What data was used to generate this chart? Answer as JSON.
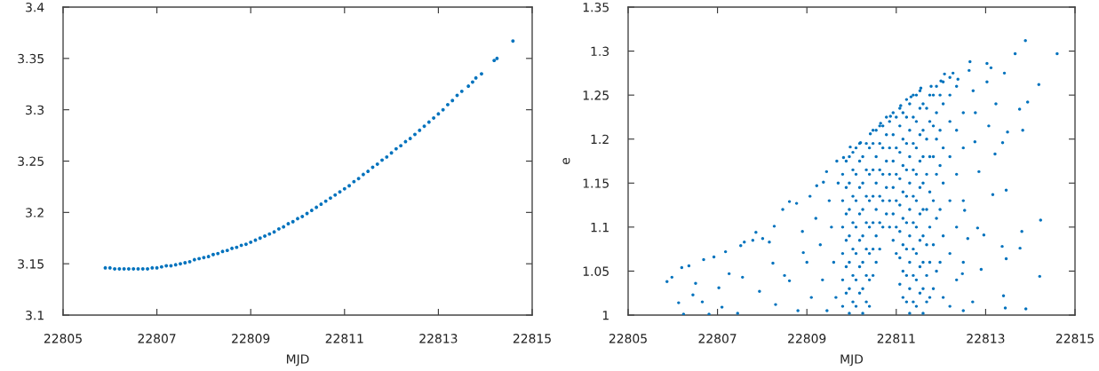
{
  "chart_data": [
    {
      "type": "scatter",
      "xlabel": "MJD",
      "xlim": [
        22805,
        22815
      ],
      "xticks": [
        22805,
        22807,
        22809,
        22811,
        22813,
        22815
      ],
      "ylim": [
        3.1,
        3.4
      ],
      "yticks": [
        3.1,
        3.15,
        3.2,
        3.25,
        3.3,
        3.35,
        3.4
      ],
      "color": "#0072bd",
      "marker": "circle",
      "x": [
        22805.9,
        22806,
        22806.1,
        22806.2,
        22806.3,
        22806.4,
        22806.5,
        22806.6,
        22806.7,
        22806.8,
        22806.9,
        22807,
        22807.1,
        22807.2,
        22807.3,
        22807.4,
        22807.5,
        22807.6,
        22807.7,
        22807.8,
        22807.9,
        22808,
        22808.1,
        22808.2,
        22808.3,
        22808.4,
        22808.5,
        22808.6,
        22808.7,
        22808.8,
        22808.9,
        22809,
        22809.1,
        22809.2,
        22809.3,
        22809.4,
        22809.5,
        22809.6,
        22809.7,
        22809.8,
        22809.9,
        22810,
        22810.1,
        22810.2,
        22810.3,
        22810.4,
        22810.5,
        22810.6,
        22810.7,
        22810.8,
        22810.9,
        22811,
        22811.1,
        22811.2,
        22811.3,
        22811.4,
        22811.5,
        22811.6,
        22811.7,
        22811.8,
        22811.9,
        22812,
        22812.1,
        22812.2,
        22812.3,
        22812.4,
        22812.5,
        22812.6,
        22812.7,
        22812.8,
        22812.9,
        22813,
        22813.1,
        22813.2,
        22813.3,
        22813.4,
        22813.5,
        22813.64,
        22813.73,
        22813.8,
        22813.92,
        22814.19,
        22814.25,
        22814.59
      ],
      "values": [
        3.146,
        3.146,
        3.145,
        3.145,
        3.145,
        3.145,
        3.145,
        3.145,
        3.145,
        3.145,
        3.146,
        3.146,
        3.147,
        3.148,
        3.148,
        3.149,
        3.15,
        3.151,
        3.152,
        3.154,
        3.155,
        3.156,
        3.157,
        3.159,
        3.16,
        3.162,
        3.163,
        3.165,
        3.166,
        3.168,
        3.169,
        3.171,
        3.173,
        3.175,
        3.177,
        3.179,
        3.181,
        3.184,
        3.186,
        3.189,
        3.191,
        3.194,
        3.196,
        3.199,
        3.202,
        3.205,
        3.208,
        3.211,
        3.214,
        3.217,
        3.22,
        3.223,
        3.226,
        3.23,
        3.233,
        3.237,
        3.24,
        3.244,
        3.247,
        3.251,
        3.254,
        3.258,
        3.262,
        3.265,
        3.269,
        3.272,
        3.276,
        3.28,
        3.284,
        3.288,
        3.292,
        3.296,
        3.3,
        3.305,
        3.309,
        3.314,
        3.318,
        3.323,
        3.327,
        3.331,
        3.335,
        3.348,
        3.35,
        3.367
      ]
    },
    {
      "type": "scatter",
      "xlabel": "MJD",
      "ylabel": "e",
      "xlim": [
        22805,
        22815
      ],
      "xticks": [
        22805,
        22807,
        22809,
        22811,
        22813,
        22815
      ],
      "ylim": [
        1,
        1.35
      ],
      "yticks": [
        1,
        1.05,
        1.1,
        1.15,
        1.2,
        1.25,
        1.3,
        1.35
      ],
      "color": "#0072bd",
      "marker": "circle",
      "x": [
        22805.87,
        22805.98,
        22806.13,
        22806.2,
        22806.36,
        22806.51,
        22806.69,
        22806.92,
        22807.18,
        22806.66,
        22807.03,
        22807.26,
        22807.52,
        22807.6,
        22807.79,
        22807.86,
        22808.01,
        22808.16,
        22808.27,
        22808.46,
        22808.61,
        22808.77,
        22807.56,
        22807.94,
        22808.24,
        22808.61,
        22808.92,
        22809.07,
        22809.22,
        22809.37,
        22809.44,
        22809.67,
        22809.82,
        22809.97,
        22810.2,
        22810.42,
        22810.65,
        22810.87,
        22811.1,
        22811.33,
        22811.55,
        22811.78,
        22812.0,
        22812.08,
        22812.27,
        22812.38,
        22808.3,
        22808.5,
        22808.8,
        22808.9,
        22809.0,
        22809.1,
        22809.2,
        22809.3,
        22809.35,
        22809.45,
        22809.5,
        22809.55,
        22809.6,
        22809.65,
        22809.7,
        22806.24,
        22806.81,
        22807.45,
        22807.1,
        22806.45,
        22809.8,
        22809.8,
        22809.8,
        22809.8,
        22809.8,
        22809.8,
        22809.95,
        22809.95,
        22809.95,
        22809.95,
        22809.95,
        22809.95,
        22809.95,
        22810.1,
        22810.1,
        22810.1,
        22810.1,
        22810.1,
        22810.1,
        22810.1,
        22810.25,
        22810.25,
        22810.25,
        22810.25,
        22810.25,
        22810.25,
        22810.25,
        22810.4,
        22810.4,
        22810.4,
        22810.4,
        22810.4,
        22810.4,
        22810.4,
        22810.55,
        22810.55,
        22810.55,
        22810.55,
        22810.55,
        22810.55,
        22810.7,
        22810.7,
        22810.7,
        22810.7,
        22810.7,
        22810.85,
        22810.85,
        22810.85,
        22810.85,
        22810.85,
        22811.0,
        22811.0,
        22811.0,
        22811.0,
        22811.0,
        22811.0,
        22811.15,
        22811.15,
        22811.15,
        22811.15,
        22811.15,
        22811.15,
        22811.15,
        22811.15,
        22811.3,
        22811.3,
        22811.3,
        22811.3,
        22811.3,
        22811.3,
        22811.3,
        22811.3,
        22811.3,
        22811.45,
        22811.45,
        22811.45,
        22811.45,
        22811.45,
        22811.45,
        22811.45,
        22811.45,
        22811.45,
        22811.6,
        22811.6,
        22811.6,
        22811.6,
        22811.6,
        22811.6,
        22811.6,
        22811.6,
        22811.6,
        22811.75,
        22811.75,
        22811.75,
        22811.75,
        22811.75,
        22811.75,
        22811.75,
        22811.9,
        22811.9,
        22811.9,
        22811.9,
        22811.9,
        22811.9,
        22812.05,
        22812.05,
        22812.05,
        22812.05,
        22812.05,
        22812.05,
        22812.2,
        22812.2,
        22812.2,
        22812.2,
        22812.2,
        22812.2,
        22812.2,
        22812.35,
        22812.35,
        22812.35,
        22812.35,
        22812.35,
        22812.5,
        22812.5,
        22812.5,
        22812.5,
        22812.5,
        22809.88,
        22809.88,
        22809.88,
        22809.88,
        22809.88,
        22809.88,
        22810.03,
        22810.03,
        22810.03,
        22810.03,
        22810.03,
        22810.03,
        22810.03,
        22810.18,
        22810.18,
        22810.18,
        22810.18,
        22810.18,
        22810.18,
        22810.18,
        22810.33,
        22810.33,
        22810.33,
        22810.33,
        22810.33,
        22810.33,
        22810.33,
        22810.48,
        22810.48,
        22810.48,
        22810.48,
        22810.48,
        22810.48,
        22810.48,
        22810.63,
        22810.63,
        22810.63,
        22810.63,
        22810.63,
        22810.63,
        22810.78,
        22810.78,
        22810.78,
        22810.78,
        22810.78,
        22810.93,
        22810.93,
        22810.93,
        22810.93,
        22810.93,
        22810.93,
        22811.08,
        22811.08,
        22811.08,
        22811.08,
        22811.08,
        22811.08,
        22811.08,
        22811.08,
        22811.23,
        22811.23,
        22811.23,
        22811.23,
        22811.23,
        22811.23,
        22811.23,
        22811.23,
        22811.23,
        22811.38,
        22811.38,
        22811.38,
        22811.38,
        22811.38,
        22811.38,
        22811.38,
        22811.38,
        22811.38,
        22811.53,
        22811.53,
        22811.53,
        22811.53,
        22811.53,
        22811.53,
        22811.53,
        22811.53,
        22811.53,
        22811.68,
        22811.68,
        22811.68,
        22811.68,
        22811.68,
        22811.68,
        22811.68,
        22811.83,
        22811.83,
        22811.83,
        22811.83,
        22811.83,
        22811.83,
        22811.98,
        22811.98,
        22811.98,
        22811.98,
        22811.98,
        22812.65,
        22813.03,
        22813.12,
        22813.42,
        22813.66,
        22813.89,
        22814.6,
        22814.19,
        22813.94,
        22813.76,
        22813.83,
        22813.49,
        22813.38,
        22813.21,
        22813.46,
        22813.16,
        22814.23,
        22813.81,
        22813.77,
        22814.21,
        22813.37,
        22813.46,
        22813.4,
        22813.44,
        22813.9,
        22812.96,
        22812.9,
        22812.82,
        22812.85,
        22812.76,
        22812.72,
        22813.03,
        22813.23,
        22813.07,
        22812.63,
        22812.77,
        22812.71,
        22812.48,
        22812.53,
        22812.6
      ],
      "values": [
        1.038,
        1.043,
        1.014,
        1.054,
        1.056,
        1.036,
        1.063,
        1.066,
        1.072,
        1.015,
        1.031,
        1.047,
        1.079,
        1.083,
        1.085,
        1.094,
        1.087,
        1.083,
        1.101,
        1.12,
        1.129,
        1.127,
        1.043,
        1.027,
        1.059,
        1.039,
        1.071,
        1.135,
        1.147,
        1.151,
        1.163,
        1.175,
        1.179,
        1.191,
        1.196,
        1.206,
        1.218,
        1.226,
        1.238,
        1.248,
        1.258,
        1.26,
        1.266,
        1.274,
        1.275,
        1.268,
        1.012,
        1.045,
        1.005,
        1.095,
        1.06,
        1.02,
        1.11,
        1.08,
        1.04,
        1.005,
        1.13,
        1.1,
        1.06,
        1.02,
        1.15,
        1.001,
        1.001,
        1.002,
        1.009,
        1.023,
        1.01,
        1.04,
        1.07,
        1.1,
        1.13,
        1.16,
        1.002,
        1.03,
        1.06,
        1.09,
        1.12,
        1.15,
        1.18,
        1.01,
        1.04,
        1.07,
        1.1,
        1.13,
        1.16,
        1.19,
        1.002,
        1.03,
        1.06,
        1.09,
        1.12,
        1.15,
        1.18,
        1.01,
        1.04,
        1.07,
        1.1,
        1.13,
        1.16,
        1.19,
        1.06,
        1.09,
        1.12,
        1.15,
        1.18,
        1.21,
        1.1,
        1.13,
        1.16,
        1.19,
        1.215,
        1.1,
        1.13,
        1.16,
        1.19,
        1.22,
        1.07,
        1.1,
        1.13,
        1.16,
        1.19,
        1.225,
        1.02,
        1.05,
        1.08,
        1.11,
        1.14,
        1.17,
        1.2,
        1.23,
        1.002,
        1.03,
        1.06,
        1.09,
        1.12,
        1.15,
        1.18,
        1.21,
        1.24,
        1.01,
        1.04,
        1.07,
        1.1,
        1.13,
        1.16,
        1.19,
        1.22,
        1.25,
        1.002,
        1.03,
        1.06,
        1.09,
        1.12,
        1.15,
        1.18,
        1.21,
        1.24,
        1.02,
        1.06,
        1.1,
        1.14,
        1.18,
        1.22,
        1.25,
        1.05,
        1.11,
        1.16,
        1.2,
        1.23,
        1.26,
        1.02,
        1.09,
        1.15,
        1.19,
        1.24,
        1.265,
        1.01,
        1.07,
        1.13,
        1.18,
        1.22,
        1.25,
        1.27,
        1.04,
        1.1,
        1.16,
        1.21,
        1.26,
        1.005,
        1.06,
        1.13,
        1.19,
        1.23,
        1.025,
        1.055,
        1.085,
        1.115,
        1.145,
        1.175,
        1.015,
        1.045,
        1.075,
        1.105,
        1.135,
        1.165,
        1.185,
        1.025,
        1.055,
        1.085,
        1.115,
        1.145,
        1.175,
        1.195,
        1.015,
        1.045,
        1.075,
        1.105,
        1.135,
        1.165,
        1.195,
        1.045,
        1.075,
        1.105,
        1.135,
        1.165,
        1.195,
        1.21,
        1.075,
        1.105,
        1.135,
        1.165,
        1.195,
        1.215,
        1.115,
        1.145,
        1.175,
        1.205,
        1.225,
        1.085,
        1.115,
        1.145,
        1.175,
        1.205,
        1.23,
        1.035,
        1.065,
        1.095,
        1.125,
        1.155,
        1.185,
        1.215,
        1.235,
        1.015,
        1.045,
        1.075,
        1.105,
        1.135,
        1.165,
        1.195,
        1.225,
        1.245,
        1.015,
        1.045,
        1.075,
        1.105,
        1.135,
        1.165,
        1.195,
        1.225,
        1.25,
        1.025,
        1.055,
        1.085,
        1.115,
        1.145,
        1.175,
        1.205,
        1.235,
        1.255,
        1.015,
        1.045,
        1.08,
        1.12,
        1.16,
        1.2,
        1.235,
        1.03,
        1.08,
        1.13,
        1.18,
        1.215,
        1.25,
        1.06,
        1.12,
        1.17,
        1.21,
        1.25,
        1.288,
        1.286,
        1.281,
        1.275,
        1.297,
        1.312,
        1.297,
        1.262,
        1.242,
        1.234,
        1.21,
        1.208,
        1.196,
        1.183,
        1.142,
        1.137,
        1.108,
        1.095,
        1.076,
        1.044,
        1.078,
        1.064,
        1.022,
        1.008,
        1.007,
        1.091,
        1.052,
        1.099,
        1.163,
        1.197,
        1.255,
        1.265,
        1.24,
        1.215,
        1.278,
        1.23,
        1.015,
        1.047,
        1.119,
        1.087
      ]
    }
  ]
}
